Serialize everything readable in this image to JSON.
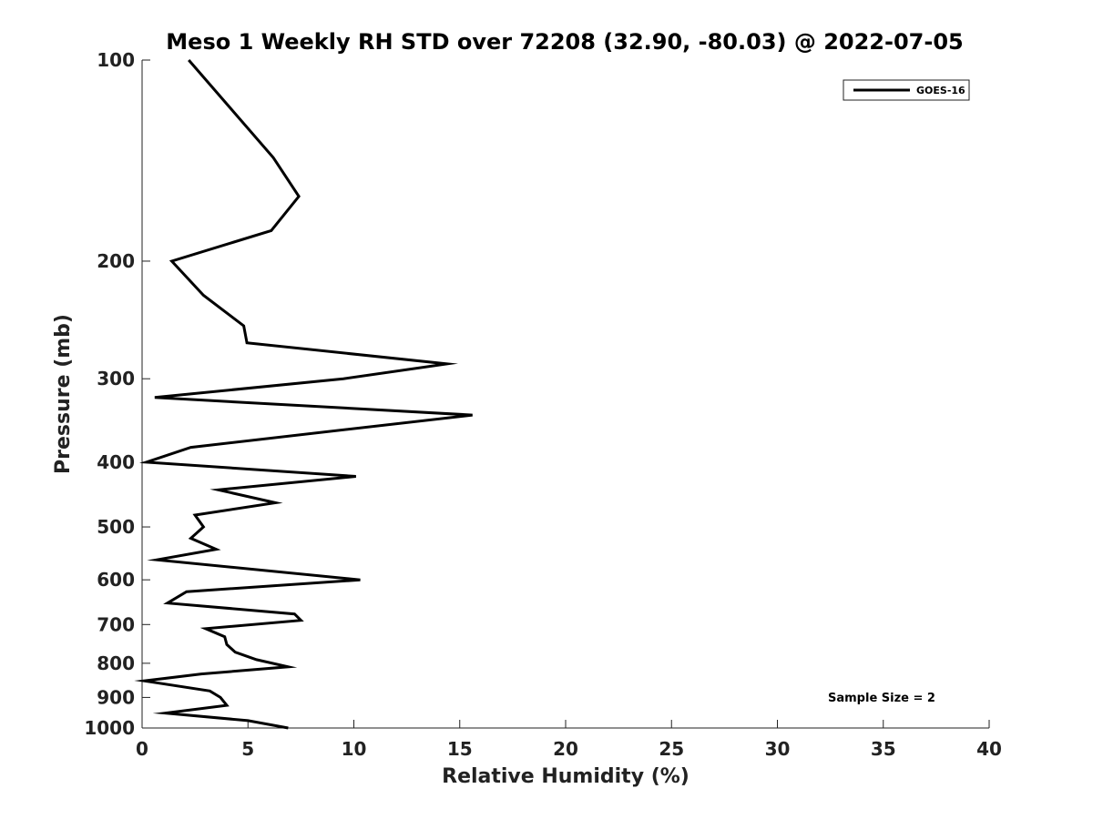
{
  "chart_data": {
    "type": "line",
    "title": "Meso 1 Weekly RH STD over 72208 (32.90, -80.03) @ 2022-07-05",
    "xlabel": "Relative Humidity (%)",
    "ylabel": "Pressure (mb)",
    "xlim": [
      0,
      40
    ],
    "ylim": [
      100,
      1000
    ],
    "yscale": "log",
    "y_inverted": true,
    "x_ticks": [
      0,
      5,
      10,
      15,
      20,
      25,
      30,
      35,
      40
    ],
    "y_ticks": [
      100,
      200,
      300,
      400,
      500,
      600,
      700,
      800,
      900,
      1000
    ],
    "legend_position": "top-right",
    "series": [
      {
        "name": "GOES-16",
        "color": "#000000",
        "points": [
          [
            2.2,
            100
          ],
          [
            6.2,
            140
          ],
          [
            7.4,
            160
          ],
          [
            6.1,
            180
          ],
          [
            1.4,
            200
          ],
          [
            2.9,
            225
          ],
          [
            4.8,
            250
          ],
          [
            4.95,
            265
          ],
          [
            14.4,
            285
          ],
          [
            9.5,
            300
          ],
          [
            0.6,
            320
          ],
          [
            15.6,
            340
          ],
          [
            2.3,
            380
          ],
          [
            0.2,
            400
          ],
          [
            10.1,
            420
          ],
          [
            3.6,
            440
          ],
          [
            6.3,
            460
          ],
          [
            2.5,
            480
          ],
          [
            2.9,
            500
          ],
          [
            2.3,
            520
          ],
          [
            3.5,
            540
          ],
          [
            0.7,
            560
          ],
          [
            10.3,
            600
          ],
          [
            2.1,
            625
          ],
          [
            1.2,
            650
          ],
          [
            7.2,
            675
          ],
          [
            7.5,
            690
          ],
          [
            3.0,
            710
          ],
          [
            3.9,
            730
          ],
          [
            4.0,
            750
          ],
          [
            4.4,
            770
          ],
          [
            5.4,
            790
          ],
          [
            6.9,
            810
          ],
          [
            2.8,
            830
          ],
          [
            0.1,
            850
          ],
          [
            3.2,
            880
          ],
          [
            3.7,
            900
          ],
          [
            4.0,
            925
          ],
          [
            1.1,
            950
          ],
          [
            5.0,
            975
          ],
          [
            6.9,
            1000
          ]
        ]
      }
    ],
    "annotations": [
      "Sample Size = 2"
    ]
  }
}
